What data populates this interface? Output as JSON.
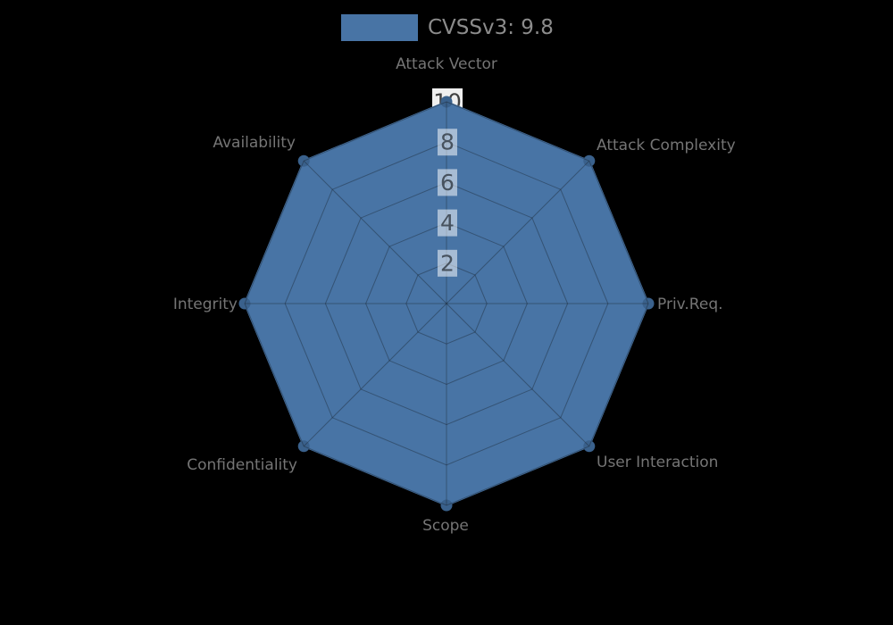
{
  "legend": {
    "label": "CVSSv3: 9.8",
    "swatch_color": "#4874A5",
    "text_color": "#8C8C8C",
    "position": "top-center"
  },
  "chart_data": {
    "type": "radar",
    "title": "CVSSv3: 9.8",
    "axes": [
      "Attack Vector",
      "Attack Complexity",
      "Priv.Req.",
      "User Interaction",
      "Scope",
      "Confidentiality",
      "Integrity",
      "Availability"
    ],
    "axis_max": 10,
    "axis_min": 0,
    "ticks": [
      2,
      4,
      6,
      8,
      10
    ],
    "series": [
      {
        "name": "CVSSv3: 9.8",
        "values": [
          10,
          10,
          10,
          10,
          10,
          10,
          10,
          10
        ],
        "color": "#4874A5",
        "marker_color": "#3A618C"
      }
    ],
    "grid": true,
    "grid_shape": "polygon",
    "legend_position": "top",
    "colors": {
      "background": "#000000",
      "fill": "#4874A5",
      "marker": "#3A618C",
      "grid_line": "rgba(22,28,36,0.38)",
      "tick_box": "rgba(255,255,255,0.52)",
      "tick_box_outer": "#EFEFEF",
      "tick_text": "#47525E",
      "tick_text_outer": "#3F3F3F",
      "axis_label": "#757575"
    }
  }
}
